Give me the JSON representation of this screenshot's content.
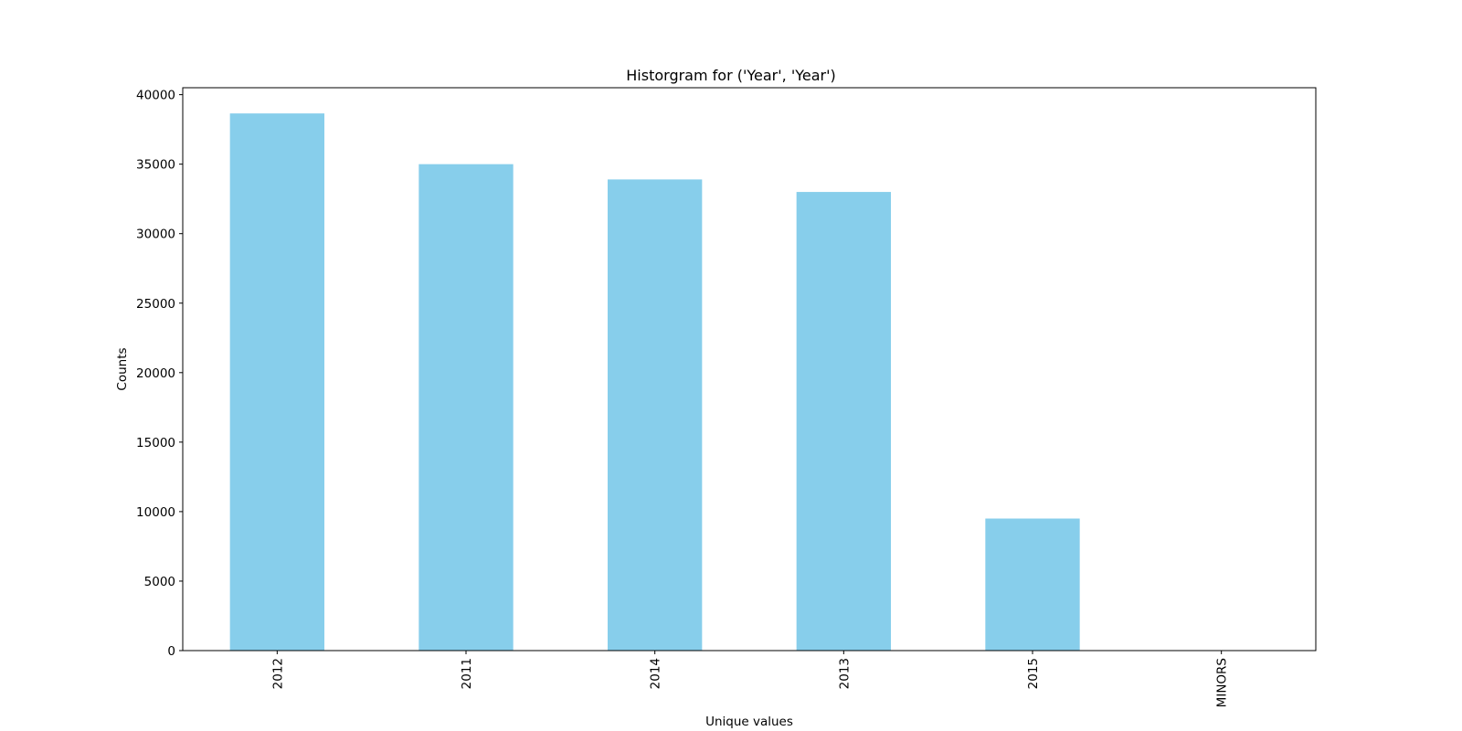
{
  "chart_data": {
    "type": "bar",
    "title": "Historgram for ('Year', 'Year')",
    "xlabel": "Unique values",
    "ylabel": "Counts",
    "categories": [
      "2012",
      "2011",
      "2014",
      "2013",
      "2015",
      "MINORS"
    ],
    "values": [
      38650,
      35000,
      33900,
      33000,
      9500,
      0
    ],
    "ylim": [
      0,
      40500
    ],
    "yticks": [
      0,
      5000,
      10000,
      15000,
      20000,
      25000,
      30000,
      35000,
      40000
    ],
    "grid": false,
    "legend": "none",
    "bar_color": "#87CEEB"
  }
}
